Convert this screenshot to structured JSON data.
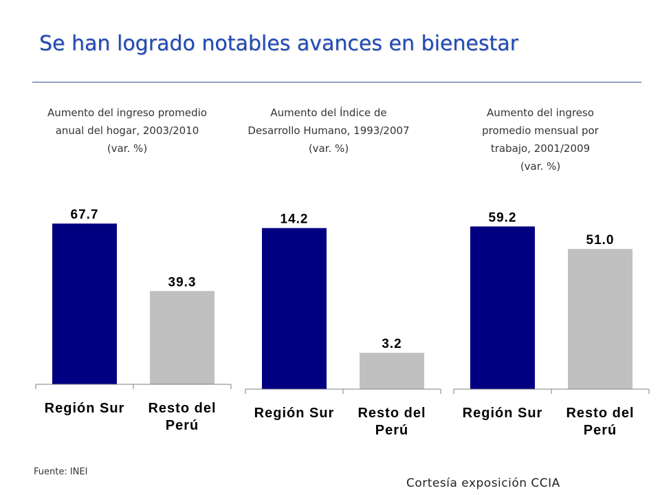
{
  "page": {
    "title": "Se han logrado notables avances en bienestar",
    "source": "Fuente: INEI",
    "courtesy": "Cortesía  exposición CCIA",
    "title_color": "#1f49b7"
  },
  "colors": {
    "primary_bar": "#000080",
    "secondary_bar": "#c0c0c0"
  },
  "chart_data": [
    {
      "type": "bar",
      "title_lines": [
        "Aumento del ingreso promedio",
        "anual del hogar, 2003/2010",
        "(var. %)"
      ],
      "categories": [
        [
          "Región Sur"
        ],
        [
          "Resto del",
          "Perú"
        ]
      ],
      "values": [
        67.7,
        39.3
      ],
      "value_labels": [
        "67.7",
        "39.3"
      ],
      "ylim": [
        0,
        75
      ]
    },
    {
      "type": "bar",
      "title_lines": [
        "Aumento del Índice de",
        "Desarrollo Humano, 1993/2007",
        "(var. %)"
      ],
      "categories": [
        [
          "Región Sur"
        ],
        [
          "Resto del",
          "Perú"
        ]
      ],
      "values": [
        14.2,
        3.2
      ],
      "value_labels": [
        "14.2",
        "3.2"
      ],
      "ylim": [
        0,
        15.7
      ]
    },
    {
      "type": "bar",
      "title_lines": [
        "Aumento del ingreso",
        "promedio mensual por",
        "trabajo, 2001/2009",
        "(var. %)"
      ],
      "categories": [
        [
          "Región Sur"
        ],
        [
          "Resto del",
          "Perú"
        ]
      ],
      "values": [
        59.2,
        51.0
      ],
      "value_labels": [
        "59.2",
        "51.0"
      ],
      "ylim": [
        0,
        64.8
      ]
    }
  ]
}
